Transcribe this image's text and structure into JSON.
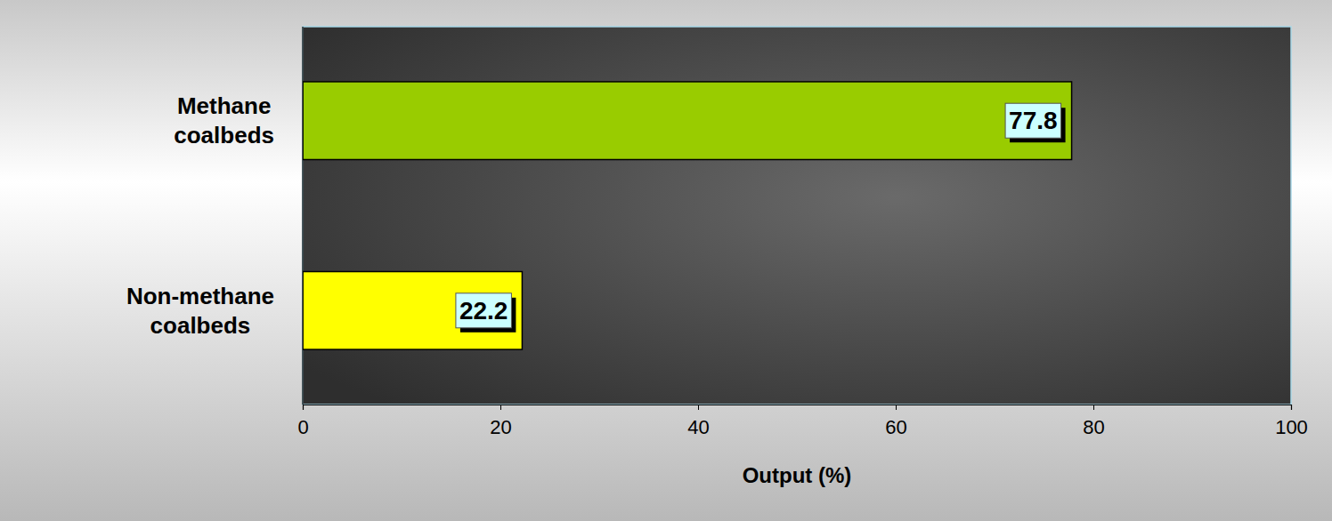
{
  "chart_data": {
    "type": "bar",
    "orientation": "horizontal",
    "categories": [
      "Methane coalbeds",
      "Non-methane coalbeds"
    ],
    "values": [
      77.8,
      22.2
    ],
    "colors": [
      "#99cc00",
      "#ffff00"
    ],
    "x_label": "Output (%)",
    "xlim": [
      0,
      100
    ],
    "xticks": [
      0,
      20,
      40,
      60,
      80,
      100
    ],
    "data_labels": true,
    "grid": false
  }
}
